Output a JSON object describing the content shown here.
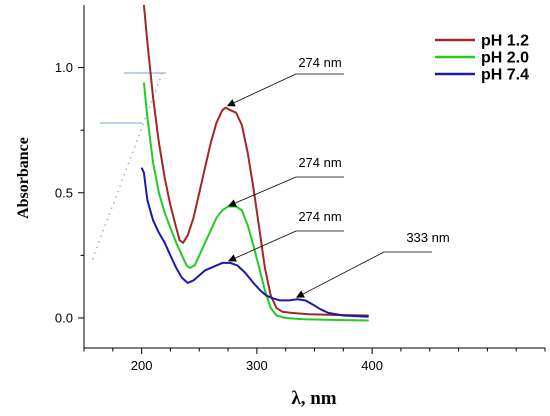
{
  "chart_data": {
    "type": "line",
    "xlabel": "λ, nm",
    "ylabel": "Absorbance",
    "xlim": [
      150,
      550
    ],
    "ylim": [
      -0.12,
      1.25
    ],
    "x_ticks": [
      200,
      300,
      400
    ],
    "y_ticks": [
      0.0,
      0.5,
      1.0
    ],
    "y_tick_labels": [
      "0.0",
      "0.5",
      "1.0"
    ],
    "legend_position": "top-right",
    "series": [
      {
        "name": "pH 1.2",
        "color": "#a32626",
        "points": [
          [
            202,
            1.25
          ],
          [
            205,
            1.1
          ],
          [
            210,
            0.88
          ],
          [
            215,
            0.7
          ],
          [
            220,
            0.56
          ],
          [
            225,
            0.45
          ],
          [
            230,
            0.36
          ],
          [
            233,
            0.31
          ],
          [
            236,
            0.3
          ],
          [
            240,
            0.33
          ],
          [
            245,
            0.4
          ],
          [
            250,
            0.5
          ],
          [
            255,
            0.6
          ],
          [
            260,
            0.7
          ],
          [
            265,
            0.78
          ],
          [
            270,
            0.83
          ],
          [
            273,
            0.84
          ],
          [
            277,
            0.83
          ],
          [
            282,
            0.82
          ],
          [
            287,
            0.77
          ],
          [
            292,
            0.66
          ],
          [
            297,
            0.52
          ],
          [
            302,
            0.36
          ],
          [
            307,
            0.2
          ],
          [
            312,
            0.09
          ],
          [
            317,
            0.04
          ],
          [
            322,
            0.025
          ],
          [
            330,
            0.02
          ],
          [
            345,
            0.015
          ],
          [
            370,
            0.012
          ],
          [
            397,
            0.01
          ]
        ]
      },
      {
        "name": "pH 2.0",
        "color": "#22cc22",
        "points": [
          [
            202,
            0.94
          ],
          [
            205,
            0.8
          ],
          [
            210,
            0.62
          ],
          [
            215,
            0.5
          ],
          [
            220,
            0.42
          ],
          [
            225,
            0.36
          ],
          [
            230,
            0.3
          ],
          [
            235,
            0.25
          ],
          [
            239,
            0.21
          ],
          [
            242,
            0.2
          ],
          [
            246,
            0.21
          ],
          [
            250,
            0.25
          ],
          [
            255,
            0.3
          ],
          [
            260,
            0.35
          ],
          [
            265,
            0.4
          ],
          [
            270,
            0.43
          ],
          [
            275,
            0.445
          ],
          [
            282,
            0.445
          ],
          [
            287,
            0.43
          ],
          [
            292,
            0.37
          ],
          [
            297,
            0.29
          ],
          [
            302,
            0.2
          ],
          [
            307,
            0.11
          ],
          [
            312,
            0.04
          ],
          [
            317,
            0.01
          ],
          [
            325,
            0.0
          ],
          [
            340,
            -0.005
          ],
          [
            370,
            -0.008
          ],
          [
            397,
            -0.01
          ]
        ]
      },
      {
        "name": "pH 7.4",
        "color": "#1a1aaa",
        "points": [
          [
            200,
            0.6
          ],
          [
            202,
            0.58
          ],
          [
            205,
            0.47
          ],
          [
            210,
            0.39
          ],
          [
            215,
            0.34
          ],
          [
            220,
            0.3
          ],
          [
            225,
            0.25
          ],
          [
            230,
            0.2
          ],
          [
            235,
            0.16
          ],
          [
            240,
            0.14
          ],
          [
            245,
            0.15
          ],
          [
            250,
            0.17
          ],
          [
            255,
            0.19
          ],
          [
            260,
            0.2
          ],
          [
            265,
            0.21
          ],
          [
            270,
            0.22
          ],
          [
            277,
            0.22
          ],
          [
            283,
            0.21
          ],
          [
            290,
            0.18
          ],
          [
            297,
            0.14
          ],
          [
            303,
            0.11
          ],
          [
            308,
            0.09
          ],
          [
            313,
            0.08
          ],
          [
            320,
            0.07
          ],
          [
            328,
            0.07
          ],
          [
            335,
            0.075
          ],
          [
            342,
            0.07
          ],
          [
            348,
            0.055
          ],
          [
            355,
            0.035
          ],
          [
            362,
            0.02
          ],
          [
            375,
            0.01
          ],
          [
            397,
            0.005
          ]
        ]
      }
    ],
    "annotations": [
      {
        "text": "274 nm",
        "target": [
          273,
          0.84
        ]
      },
      {
        "text": "274 nm",
        "target": [
          274,
          0.44
        ]
      },
      {
        "text": "274 nm",
        "target": [
          274,
          0.22
        ]
      },
      {
        "text": "333 nm",
        "target": [
          333,
          0.075
        ]
      }
    ]
  }
}
